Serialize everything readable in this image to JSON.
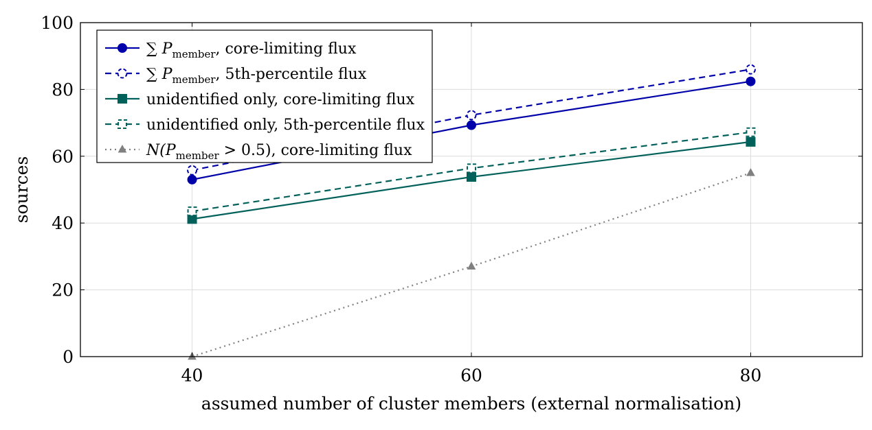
{
  "chart_data": {
    "type": "line",
    "title": "",
    "xlabel": "assumed number of cluster members (external normalisation)",
    "ylabel": "sources",
    "xlim": [
      32,
      88
    ],
    "ylim": [
      0,
      100
    ],
    "x_ticks": [
      40,
      60,
      80
    ],
    "y_ticks": [
      0,
      20,
      40,
      60,
      80,
      100
    ],
    "grid": true,
    "legend_position": "top-left",
    "x": [
      40,
      60,
      80
    ],
    "series": [
      {
        "name": "∑ P_member, core-limiting flux",
        "legend": {
          "pre": "∑ ",
          "sym": "P",
          "sub": "member",
          "post": ", core-limiting flux"
        },
        "values": [
          53,
          69.3,
          82.4
        ],
        "color": "#0000aa",
        "dash": "solid",
        "marker": "circle"
      },
      {
        "name": "∑ P_member, 5th-percentile flux",
        "legend": {
          "pre": "∑ ",
          "sym": "P",
          "sub": "member",
          "post": ", 5th-percentile flux"
        },
        "values": [
          55.8,
          72.3,
          86
        ],
        "color": "#0000aa",
        "dash": "dashed",
        "marker": "circle-open"
      },
      {
        "name": "unidentified only, core-limiting flux",
        "legend": {
          "pre": "unidentified only, core-limiting flux",
          "sym": "",
          "sub": "",
          "post": ""
        },
        "values": [
          41.2,
          53.8,
          64.3
        ],
        "color": "#00605a",
        "dash": "solid",
        "marker": "square"
      },
      {
        "name": "unidentified only, 5th-percentile flux",
        "legend": {
          "pre": "unidentified only, 5th-percentile flux",
          "sym": "",
          "sub": "",
          "post": ""
        },
        "values": [
          43.5,
          56.4,
          67.2
        ],
        "color": "#00605a",
        "dash": "dashed",
        "marker": "square-open"
      },
      {
        "name": "N(P_member > 0.5), core-limiting flux",
        "legend": {
          "pre": "",
          "sym": "N",
          "sub": "member",
          "post": " > 0.5), core-limiting flux",
          "sym2": "(P"
        },
        "values": [
          0,
          27,
          55
        ],
        "color": "#808080",
        "dash": "dotted",
        "marker": "triangle"
      }
    ]
  }
}
